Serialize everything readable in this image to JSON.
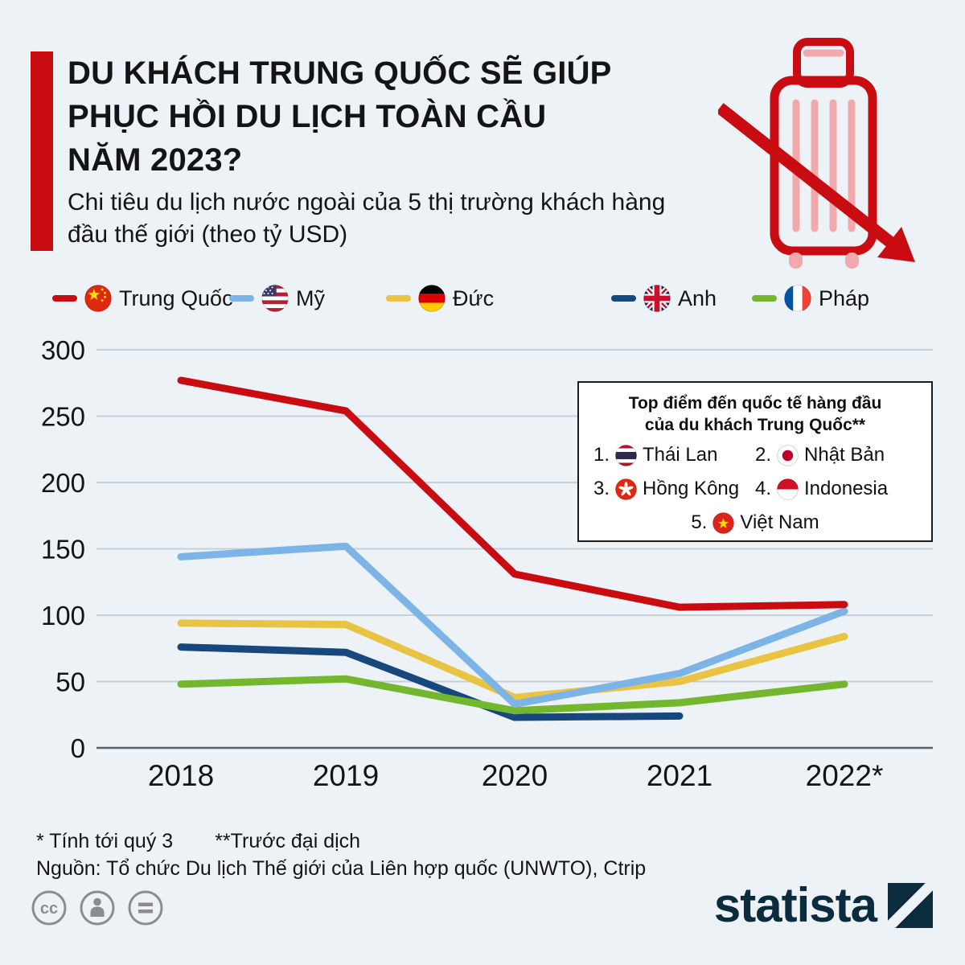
{
  "header": {
    "title_lines": [
      "DU KHÁCH TRUNG QUỐC SẼ GIÚP",
      "PHỤC HỒI DU LỊCH TOÀN CẦU",
      "NĂM 2023?"
    ],
    "subtitle_lines": [
      "Chi tiêu du lịch nước ngoài của 5 thị trường khách hàng",
      "đầu thế giới (theo tỷ USD)"
    ],
    "accent_color": "#c90c12",
    "icon": "suitcase-declining-arrow-icon"
  },
  "legend": {
    "items": [
      {
        "label": "Trung Quốc",
        "color": "#c90c12",
        "flag": "china-flag-icon"
      },
      {
        "label": "Mỹ",
        "color": "#7db4e8",
        "flag": "usa-flag-icon"
      },
      {
        "label": "Đức",
        "color": "#e9c342",
        "flag": "germany-flag-icon"
      },
      {
        "label": "Anh",
        "color": "#17477c",
        "flag": "uk-flag-icon"
      },
      {
        "label": "Pháp",
        "color": "#72b72d",
        "flag": "france-flag-icon"
      }
    ]
  },
  "chart_data": {
    "type": "line",
    "title": "Chi tiêu du lịch nước ngoài của 5 thị trường khách hàng đầu thế giới (theo tỷ USD)",
    "unit": "tỷ USD",
    "x": [
      2018,
      2019,
      2020,
      2021,
      2022
    ],
    "x_tick_labels": [
      "2018",
      "2019",
      "2020",
      "2021",
      "2022*"
    ],
    "ylim": [
      0,
      300
    ],
    "yticks": [
      0,
      50,
      100,
      150,
      200,
      250,
      300
    ],
    "grid": "horizontal",
    "legend_position": "top",
    "series": [
      {
        "name": "Trung Quốc",
        "id": "trung-quoc",
        "color": "#c90c12",
        "values": [
          277,
          254,
          131,
          106,
          108
        ]
      },
      {
        "name": "Mỹ",
        "id": "my",
        "color": "#7db4e8",
        "values": [
          144,
          152,
          33,
          56,
          103
        ]
      },
      {
        "name": "Đức",
        "id": "duc",
        "color": "#e9c342",
        "values": [
          94,
          93,
          38,
          50,
          84
        ]
      },
      {
        "name": "Anh",
        "id": "anh",
        "color": "#17477c",
        "values": [
          76,
          72,
          23,
          24,
          null
        ]
      },
      {
        "name": "Pháp",
        "id": "phap",
        "color": "#72b72d",
        "values": [
          48,
          52,
          28,
          34,
          48
        ]
      }
    ],
    "draw_order": [
      2,
      3,
      4,
      1,
      0
    ]
  },
  "inset": {
    "title_lines": [
      "Top điểm đến quốc tế hàng đầu",
      "của du khách Trung Quốc**"
    ],
    "items": [
      {
        "rank": "1.",
        "name": "Thái Lan",
        "flag": "thailand-flag-icon"
      },
      {
        "rank": "2.",
        "name": "Nhật Bản",
        "flag": "japan-flag-icon"
      },
      {
        "rank": "3.",
        "name": "Hồng Kông",
        "flag": "hong-kong-flag-icon"
      },
      {
        "rank": "4.",
        "name": "Indonesia",
        "flag": "indonesia-flag-icon"
      },
      {
        "rank": "5.",
        "name": "Việt Nam",
        "flag": "vietnam-flag-icon"
      }
    ]
  },
  "footnotes": {
    "note1": "* Tính tới quý 3",
    "note2": "**Trước đại dịch",
    "source": "Nguồn: Tổ chức Du lịch Thế giới của Liên hợp quốc (UNWTO), Ctrip"
  },
  "footer": {
    "license_icons": [
      "creative-commons-icon",
      "attribution-icon",
      "equals-icon"
    ],
    "logo_text": "statista",
    "logo_color": "#0c2b3c"
  }
}
